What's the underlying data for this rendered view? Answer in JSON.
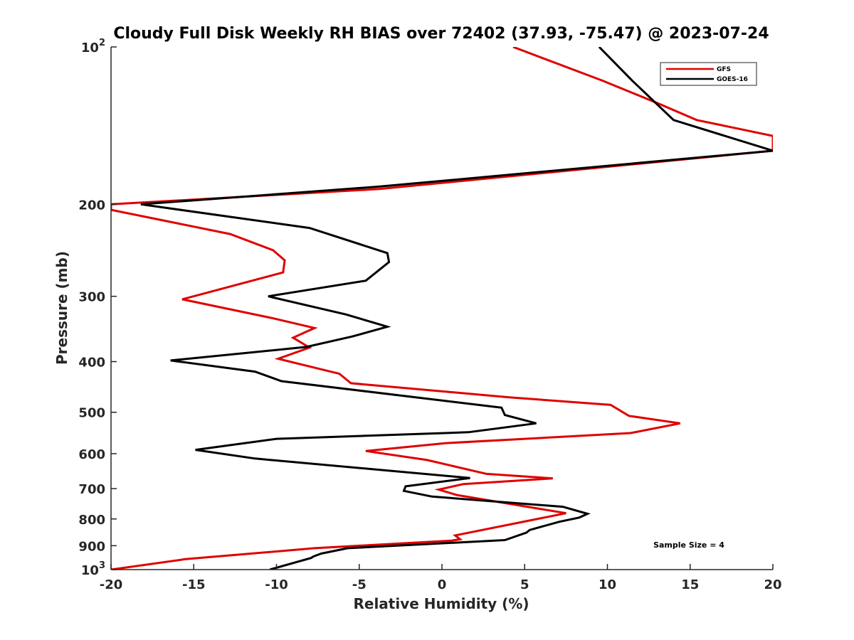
{
  "chart_data": {
    "type": "line",
    "title": "Cloudy Full Disk Weekly RH BIAS over 72402 (37.93, -75.47) @ 2023-07-24",
    "xlabel": "Relative Humidity (%)",
    "ylabel": "Pressure (mb)",
    "xlim": [
      -20,
      20
    ],
    "ylim": [
      100,
      1000
    ],
    "y_scale": "log",
    "y_reversed": true,
    "grid": false,
    "legend_position": "top-right",
    "x_ticks": [
      -20,
      -15,
      -10,
      -5,
      0,
      5,
      10,
      15,
      20
    ],
    "x_tick_labels": [
      "-20",
      "-15",
      "-10",
      "-5",
      "0",
      "5",
      "10",
      "15",
      "20"
    ],
    "y_ticks": [
      100,
      200,
      300,
      400,
      500,
      600,
      700,
      800,
      900,
      1000
    ],
    "y_tick_labels": [
      {
        "base": "10",
        "exp": "2"
      },
      {
        "base": "200",
        "exp": ""
      },
      {
        "base": "300",
        "exp": ""
      },
      {
        "base": "400",
        "exp": ""
      },
      {
        "base": "500",
        "exp": ""
      },
      {
        "base": "600",
        "exp": ""
      },
      {
        "base": "700",
        "exp": ""
      },
      {
        "base": "800",
        "exp": ""
      },
      {
        "base": "900",
        "exp": ""
      },
      {
        "base": "10",
        "exp": "3"
      }
    ],
    "annotation": "Sample Size = 4",
    "series": [
      {
        "name": "GFS",
        "color": "#e00000",
        "points": [
          [
            4.3,
            100
          ],
          [
            9.7,
            116
          ],
          [
            13.0,
            128
          ],
          [
            15.4,
            138
          ],
          [
            20,
            148
          ],
          [
            20,
            158
          ],
          [
            -3.8,
            187
          ],
          [
            -20,
            200
          ],
          [
            -20,
            205
          ],
          [
            -12.8,
            228
          ],
          [
            -10.2,
            245
          ],
          [
            -9.5,
            256
          ],
          [
            -9.6,
            270
          ],
          [
            -15.7,
            304
          ],
          [
            -10.3,
            330
          ],
          [
            -7.7,
            345
          ],
          [
            -9.0,
            360
          ],
          [
            -8.0,
            376
          ],
          [
            -9.9,
            395
          ],
          [
            -6.2,
            422
          ],
          [
            -5.5,
            440
          ],
          [
            4.0,
            468
          ],
          [
            10.2,
            484
          ],
          [
            11.3,
            508
          ],
          [
            14.4,
            525
          ],
          [
            11.4,
            548
          ],
          [
            0.2,
            573
          ],
          [
            -4.6,
            593
          ],
          [
            -0.9,
            617
          ],
          [
            2.7,
            656
          ],
          [
            6.7,
            669
          ],
          [
            1.3,
            686
          ],
          [
            -0.2,
            703
          ],
          [
            0.9,
            720
          ],
          [
            7.5,
            780
          ],
          [
            0.8,
            860
          ],
          [
            1.1,
            875
          ],
          [
            0.6,
            880
          ],
          [
            -7.7,
            910
          ],
          [
            -15.5,
            955
          ],
          [
            -20,
            1000
          ]
        ]
      },
      {
        "name": "GOES-16",
        "color": "#000000",
        "points": [
          [
            9.5,
            100
          ],
          [
            11.5,
            116
          ],
          [
            14.0,
            138
          ],
          [
            20,
            158
          ],
          [
            -3.8,
            185
          ],
          [
            -18.2,
            200
          ],
          [
            -8.0,
            222
          ],
          [
            -3.3,
            248
          ],
          [
            -3.2,
            258
          ],
          [
            -4.6,
            280
          ],
          [
            -10.5,
            300
          ],
          [
            -5.8,
            325
          ],
          [
            -3.3,
            343
          ],
          [
            -5.4,
            358
          ],
          [
            -8.2,
            375
          ],
          [
            -16.4,
            398
          ],
          [
            -11.3,
            418
          ],
          [
            -9.7,
            436
          ],
          [
            3.6,
            490
          ],
          [
            3.8,
            506
          ],
          [
            5.7,
            525
          ],
          [
            1.6,
            546
          ],
          [
            -10.0,
            562
          ],
          [
            -14.9,
            590
          ],
          [
            -11.3,
            613
          ],
          [
            1.7,
            668
          ],
          [
            -2.2,
            693
          ],
          [
            -2.3,
            707
          ],
          [
            -0.6,
            725
          ],
          [
            7.3,
            758
          ],
          [
            8.8,
            782
          ],
          [
            8.3,
            795
          ],
          [
            7.1,
            810
          ],
          [
            5.3,
            840
          ],
          [
            5.1,
            850
          ],
          [
            3.8,
            878
          ],
          [
            -5.7,
            910
          ],
          [
            -7.3,
            932
          ],
          [
            -7.8,
            945
          ],
          [
            -7.9,
            950
          ],
          [
            -10.4,
            1000
          ]
        ]
      }
    ]
  }
}
